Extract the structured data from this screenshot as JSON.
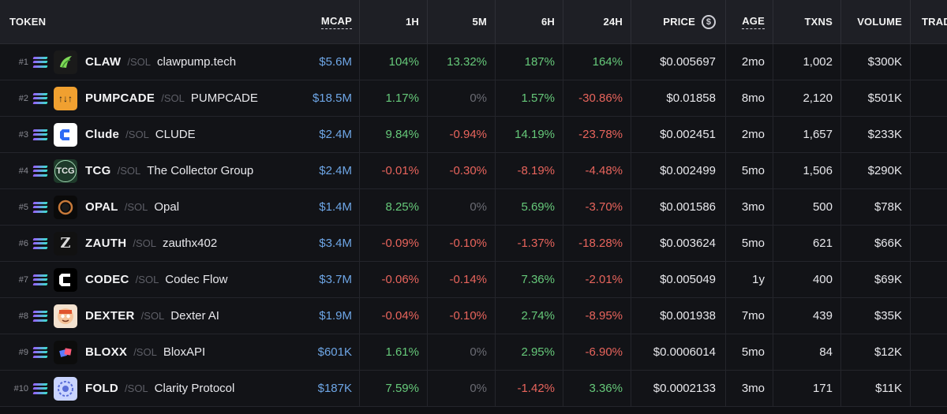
{
  "header": {
    "token": "TOKEN",
    "mcap": "MCAP",
    "h1": "1H",
    "m5": "5M",
    "h6": "6H",
    "h24": "24H",
    "price": "PRICE",
    "price_icon": "$",
    "age": "AGE",
    "txns": "TXNS",
    "volume": "VOLUME",
    "trade": "TRAD"
  },
  "chain_label": "/SOL",
  "rows": [
    {
      "rank": "#1",
      "symbol": "CLAW",
      "name": "clawpump.tech",
      "mcap": "$5.6M",
      "h1": "104%",
      "m5": "13.32%",
      "h6": "187%",
      "h24": "164%",
      "price": "$0.005697",
      "age": "2mo",
      "txns": "1,002",
      "volume": "$300K",
      "logo": "claw-logo",
      "logo_bg": "#1a1a1a"
    },
    {
      "rank": "#2",
      "symbol": "PUMPCADE",
      "name": "PUMPCADE",
      "mcap": "$18.5M",
      "h1": "1.17%",
      "m5": "0%",
      "h6": "1.57%",
      "h24": "-30.86%",
      "price": "$0.01858",
      "age": "8mo",
      "txns": "2,120",
      "volume": "$501K",
      "logo": "pumpcade-logo",
      "logo_bg": "#f0a030"
    },
    {
      "rank": "#3",
      "symbol": "Clude",
      "name": "CLUDE",
      "mcap": "$2.4M",
      "h1": "9.84%",
      "m5": "-0.94%",
      "h6": "14.19%",
      "h24": "-23.78%",
      "price": "$0.002451",
      "age": "2mo",
      "txns": "1,657",
      "volume": "$233K",
      "logo": "clude-logo",
      "logo_bg": "#ffffff"
    },
    {
      "rank": "#4",
      "symbol": "TCG",
      "name": "The Collector Group",
      "mcap": "$2.4M",
      "h1": "-0.01%",
      "m5": "-0.30%",
      "h6": "-8.19%",
      "h24": "-4.48%",
      "price": "$0.002499",
      "age": "5mo",
      "txns": "1,506",
      "volume": "$290K",
      "logo": "tcg-logo",
      "logo_bg": "#1e3a2a"
    },
    {
      "rank": "#5",
      "symbol": "OPAL",
      "name": "Opal",
      "mcap": "$1.4M",
      "h1": "8.25%",
      "m5": "0%",
      "h6": "5.69%",
      "h24": "-3.70%",
      "price": "$0.001586",
      "age": "3mo",
      "txns": "500",
      "volume": "$78K",
      "logo": "opal-logo",
      "logo_bg": "#0a0a0a"
    },
    {
      "rank": "#6",
      "symbol": "ZAUTH",
      "name": "zauthx402",
      "mcap": "$3.4M",
      "h1": "-0.09%",
      "m5": "-0.10%",
      "h6": "-1.37%",
      "h24": "-18.28%",
      "price": "$0.003624",
      "age": "5mo",
      "txns": "621",
      "volume": "$66K",
      "logo": "zauth-logo",
      "logo_bg": "#111111"
    },
    {
      "rank": "#7",
      "symbol": "CODEC",
      "name": "Codec Flow",
      "mcap": "$3.7M",
      "h1": "-0.06%",
      "m5": "-0.14%",
      "h6": "7.36%",
      "h24": "-2.01%",
      "price": "$0.005049",
      "age": "1y",
      "txns": "400",
      "volume": "$69K",
      "logo": "codec-logo",
      "logo_bg": "#000000"
    },
    {
      "rank": "#8",
      "symbol": "DEXTER",
      "name": "Dexter AI",
      "mcap": "$1.9M",
      "h1": "-0.04%",
      "m5": "-0.10%",
      "h6": "2.74%",
      "h24": "-8.95%",
      "price": "$0.001938",
      "age": "7mo",
      "txns": "439",
      "volume": "$35K",
      "logo": "dexter-logo",
      "logo_bg": "#f3e2d0"
    },
    {
      "rank": "#9",
      "symbol": "BLOXX",
      "name": "BloxAPI",
      "mcap": "$601K",
      "h1": "1.61%",
      "m5": "0%",
      "h6": "2.95%",
      "h24": "-6.90%",
      "price": "$0.0006014",
      "age": "5mo",
      "txns": "84",
      "volume": "$12K",
      "logo": "bloxx-logo",
      "logo_bg": "#0c0c0c"
    },
    {
      "rank": "#10",
      "symbol": "FOLD",
      "name": "Clarity Protocol",
      "mcap": "$187K",
      "h1": "7.59%",
      "m5": "0%",
      "h6": "-1.42%",
      "h24": "3.36%",
      "price": "$0.0002133",
      "age": "3mo",
      "txns": "171",
      "volume": "$11K",
      "logo": "fold-logo",
      "logo_bg": "#c9d4ff"
    }
  ]
}
